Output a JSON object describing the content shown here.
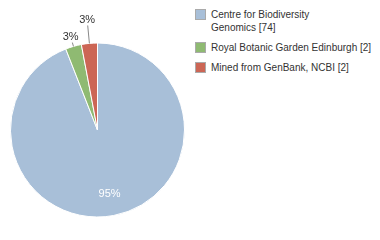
{
  "chart_data": {
    "type": "pie",
    "categories": [
      "Centre for Biodiversity\nGenomics [74]",
      "Royal Botanic Garden Edinburgh [2]",
      "Mined from GenBank, NCBI [2]"
    ],
    "values": [
      95,
      3,
      3
    ],
    "value_labels": [
      "95%",
      "3%",
      "3%"
    ],
    "colors": [
      "#a8bfd8",
      "#8fba72",
      "#cc6655"
    ],
    "data_labels": true,
    "legend": "right"
  }
}
